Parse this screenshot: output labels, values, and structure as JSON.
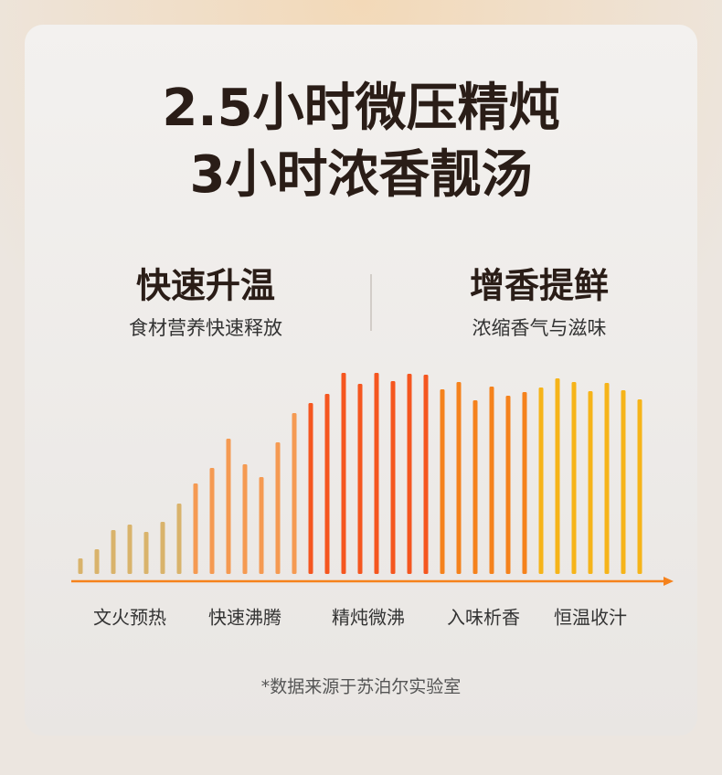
{
  "title_lines": [
    "2.5小时微压精炖",
    "3小时浓香靓汤"
  ],
  "features": [
    {
      "title": "快速升温",
      "subtitle": "食材营养快速释放"
    },
    {
      "title": "增香提鲜",
      "subtitle": "浓缩香气与滋味"
    }
  ],
  "chart_data": {
    "type": "bar",
    "ylim": [
      0,
      220
    ],
    "series": [
      {
        "name": "文火预热",
        "color": "#d9b36b",
        "values": [
          17,
          27,
          48,
          54,
          46,
          57,
          77
        ]
      },
      {
        "name": "快速沸腾",
        "color": "#f59a52",
        "values": [
          99,
          116,
          148,
          120,
          106,
          144,
          176
        ]
      },
      {
        "name": "精炖微沸",
        "color": "#f5561f",
        "values": [
          187,
          197,
          220,
          208,
          220,
          211,
          219,
          218
        ]
      },
      {
        "name": "入味析香",
        "color": "#f5821c",
        "values": [
          202,
          210,
          190,
          205,
          195,
          199
        ]
      },
      {
        "name": "恒温收汁",
        "color": "#f6b419",
        "values": [
          204,
          214,
          210,
          200,
          209,
          201,
          191
        ]
      }
    ]
  },
  "footnote": "*数据来源于苏泊尔实验室"
}
